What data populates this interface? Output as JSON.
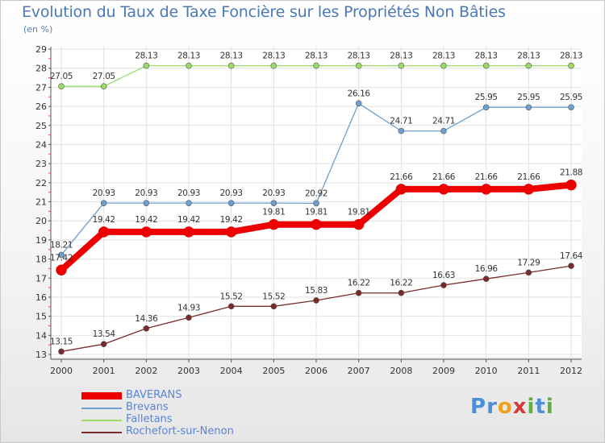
{
  "chart_data": {
    "type": "line",
    "title": "Evolution du Taux de Taxe Foncière sur les Propriétés Non Bâties",
    "subtitle": "(en %)",
    "x": [
      "2000",
      "2001",
      "2002",
      "2003",
      "2004",
      "2005",
      "2006",
      "2007",
      "2008",
      "2009",
      "2010",
      "2011",
      "2012"
    ],
    "ylim": [
      13,
      29
    ],
    "yticks": [
      13,
      14,
      15,
      16,
      17,
      18,
      19,
      20,
      21,
      22,
      23,
      24,
      25,
      26,
      27,
      28,
      29
    ],
    "grid": true,
    "legend_position": "bottom-left",
    "series": [
      {
        "name": "BAVERANS",
        "color": "#ee0000",
        "values": [
          17.42,
          19.42,
          19.42,
          19.42,
          19.42,
          19.81,
          19.81,
          19.81,
          21.66,
          21.66,
          21.66,
          21.66,
          21.88
        ],
        "labels": [
          "17.42",
          "19.42",
          "19.42",
          "19.42",
          "19.42",
          "19.81",
          "19.81",
          "19.81",
          "21.66",
          "21.66",
          "21.66",
          "21.66",
          "21.88"
        ]
      },
      {
        "name": "Brevans",
        "color": "#6f9fd0",
        "values": [
          18.21,
          20.93,
          20.93,
          20.93,
          20.93,
          20.93,
          20.92,
          26.16,
          24.71,
          24.71,
          25.95,
          25.95,
          25.95
        ],
        "labels": [
          "18.21",
          "20.93",
          "20.93",
          "20.93",
          "20.93",
          "20.93",
          "20.92",
          "26.16",
          "24.71",
          "24.71",
          "25.95",
          "25.95",
          "25.95"
        ]
      },
      {
        "name": "Falletans",
        "color": "#99dd66",
        "values": [
          27.05,
          27.05,
          28.13,
          28.13,
          28.13,
          28.13,
          28.13,
          28.13,
          28.13,
          28.13,
          28.13,
          28.13,
          28.13
        ],
        "labels": [
          "27.05",
          "27.05",
          "28.13",
          "28.13",
          "28.13",
          "28.13",
          "28.13",
          "28.13",
          "28.13",
          "28.13",
          "28.13",
          "28.13",
          "28.13"
        ]
      },
      {
        "name": "Rochefort-sur-Nenon",
        "color": "#7a2a2a",
        "values": [
          13.15,
          13.54,
          14.36,
          14.93,
          15.52,
          15.52,
          15.83,
          16.22,
          16.22,
          16.63,
          16.96,
          17.29,
          17.64
        ],
        "labels": [
          "13.15",
          "13.54",
          "14.36",
          "14.93",
          "15.52",
          "15.52",
          "15.83",
          "16.22",
          "16.22",
          "16.63",
          "16.96",
          "17.29",
          "17.64"
        ]
      }
    ]
  },
  "logo": {
    "text": "Proxiti",
    "letters": [
      "P",
      "r",
      "o",
      "x",
      "i",
      "t",
      "i"
    ],
    "colors": [
      "#4a8fd8",
      "#4a8fd8",
      "#f0a020",
      "#d83a3a",
      "#5cb040",
      "#4a8fd8",
      "#5cb040"
    ]
  }
}
